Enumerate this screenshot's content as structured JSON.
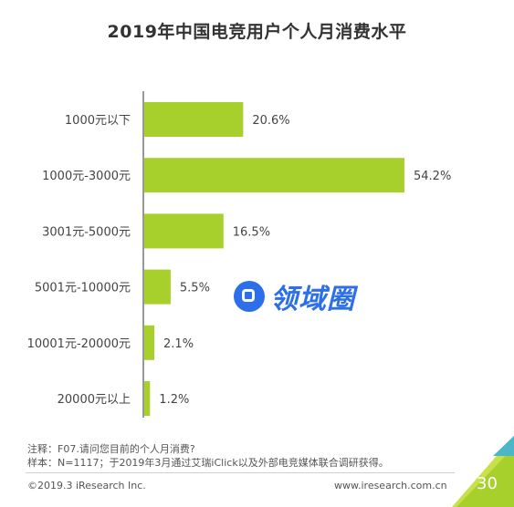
{
  "title": "2019年中国电竞用户个人月消费水平",
  "chart_data": {
    "type": "bar",
    "orientation": "horizontal",
    "categories": [
      "1000元以下",
      "1000元-3000元",
      "3001元-5000元",
      "5001元-10000元",
      "10001元-20000元",
      "20000元以上"
    ],
    "values": [
      20.6,
      54.2,
      16.5,
      5.5,
      2.1,
      1.2
    ],
    "value_labels": [
      "20.6%",
      "54.2%",
      "16.5%",
      "5.5%",
      "2.1%",
      "1.2%"
    ],
    "unit": "%",
    "xlim": [
      0,
      60
    ],
    "grid": false,
    "bar_color": "#a8d02c"
  },
  "watermark": {
    "text": "领域圈",
    "icon": "square-logo-icon"
  },
  "notes": {
    "line1": "注释：F07.请问您目前的个人月消费?",
    "line2": "样本：N=1117；于2019年3月通过艾瑞iClick以及外部电竞媒体联合调研获得。"
  },
  "footer": {
    "copyright": "©2019.3 iResearch Inc.",
    "website": "www.iresearch.com.cn",
    "page_number": "30"
  },
  "colors": {
    "accent_green": "#a8d02c",
    "accent_blue": "#2c6fe8"
  }
}
